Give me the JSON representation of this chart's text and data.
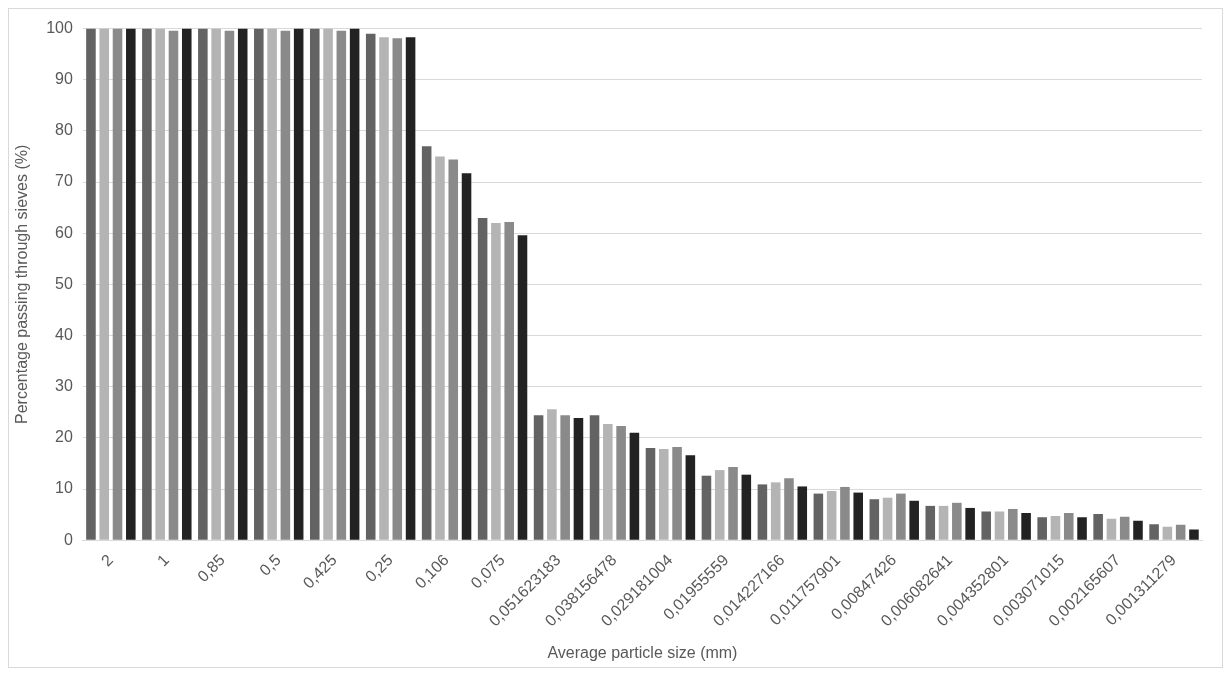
{
  "chart_data": {
    "type": "bar",
    "xlabel": "Average particle size (mm)",
    "ylabel": "Percentage passing through sieves (%)",
    "categories": [
      "2",
      "1",
      "0,85",
      "0,5",
      "0,425",
      "0,25",
      "0,106",
      "0,075",
      "0,051623183",
      "0,038156478",
      "0,029181004",
      "0,01955559",
      "0,014227166",
      "0,011757901",
      "0,00847426",
      "0,006082641",
      "0,004352801",
      "0,003071015",
      "0,002165607",
      "0,001311279"
    ],
    "series": [
      {
        "color": "#636363",
        "values": [
          100,
          100,
          100,
          100,
          100,
          99,
          77,
          63,
          24.4,
          24.4,
          18,
          12.6,
          10.9,
          9.1,
          8,
          6.7,
          5.6,
          4.5,
          5.1,
          3.1
        ]
      },
      {
        "color": "#b4b4b4",
        "values": [
          100,
          100,
          100,
          100,
          100,
          98.3,
          75,
          62,
          25.6,
          22.7,
          17.8,
          13.7,
          11.3,
          9.6,
          8.3,
          6.7,
          5.6,
          4.7,
          4.2,
          2.6
        ]
      },
      {
        "color": "#8a8a8a",
        "values": [
          100,
          99.6,
          99.6,
          99.6,
          99.6,
          98.1,
          74.4,
          62.2,
          24.4,
          22.3,
          18.2,
          14.3,
          12.1,
          10.4,
          9.1,
          7.3,
          6.1,
          5.3,
          4.6,
          3
        ]
      },
      {
        "color": "#222222",
        "values": [
          100,
          100,
          100,
          100,
          100,
          98.3,
          71.7,
          59.6,
          23.9,
          21,
          16.6,
          12.8,
          10.5,
          9.3,
          7.7,
          6.3,
          5.3,
          4.5,
          3.8,
          2.1
        ]
      }
    ],
    "ylim": [
      0,
      100
    ],
    "yticks": [
      0,
      10,
      20,
      30,
      40,
      50,
      60,
      70,
      80,
      90,
      100
    ],
    "grid": "y",
    "legend": false
  }
}
